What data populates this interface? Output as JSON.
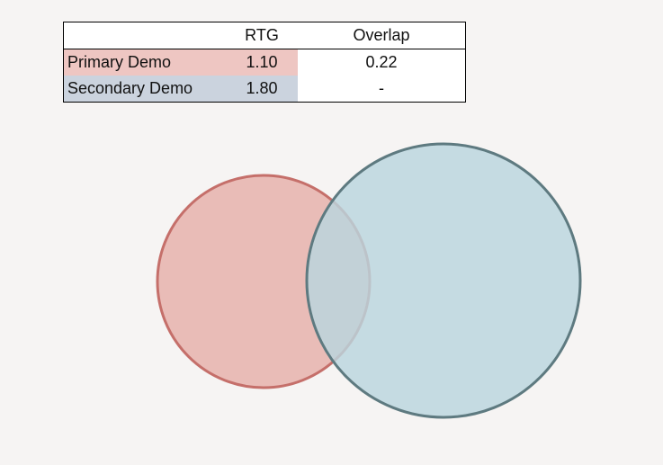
{
  "table": {
    "headers": [
      "",
      "RTG",
      "Overlap"
    ],
    "rows": [
      {
        "name": "Primary Demo",
        "rtg": "1.10",
        "overlap": "0.22"
      },
      {
        "name": "Secondary Demo",
        "rtg": "1.80",
        "overlap": "-"
      }
    ]
  },
  "colors": {
    "primary_fill": "#e6b1ac",
    "primary_stroke": "#c56f6a",
    "secondary_fill": "#b9d6de",
    "secondary_stroke": "#5e7a80",
    "primary_row": "#eec6c2",
    "secondary_row": "#cbd3de"
  },
  "venn": {
    "sets": [
      {
        "name": "Primary Demo",
        "rtg": 1.1
      },
      {
        "name": "Secondary Demo",
        "rtg": 1.8
      }
    ],
    "overlap": 0.22
  }
}
